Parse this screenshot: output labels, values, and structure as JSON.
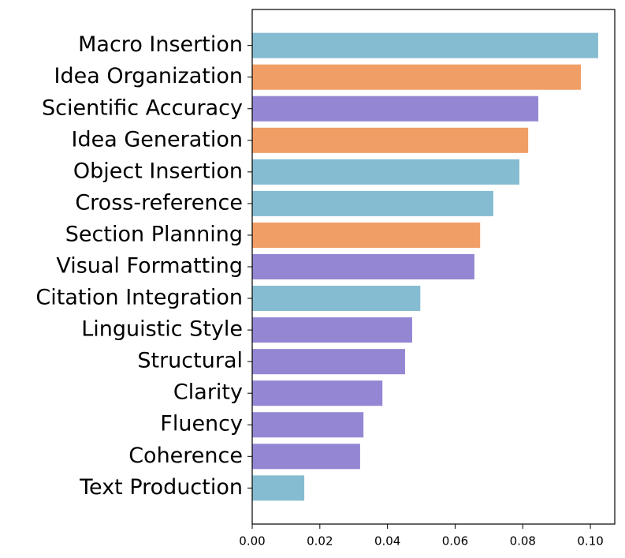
{
  "chart_data": {
    "type": "barh",
    "categories": [
      "Macro Insertion",
      "Idea Organization",
      "Scientific Accuracy",
      "Idea Generation",
      "Object Insertion",
      "Cross-reference",
      "Section Planning",
      "Visual Formatting",
      "Citation Integration",
      "Linguistic Style",
      "Structural",
      "Clarity",
      "Fluency",
      "Coherence",
      "Text Production"
    ],
    "values": [
      0.1023,
      0.0972,
      0.0846,
      0.0816,
      0.079,
      0.0713,
      0.0674,
      0.0657,
      0.0497,
      0.0473,
      0.0452,
      0.0385,
      0.0329,
      0.0319,
      0.0154
    ],
    "colors": [
      "#86bcd1",
      "#f09e66",
      "#9586d3",
      "#f09e66",
      "#86bcd1",
      "#86bcd1",
      "#f09e66",
      "#9586d3",
      "#86bcd1",
      "#9586d3",
      "#9586d3",
      "#9586d3",
      "#9586d3",
      "#9586d3",
      "#86bcd1"
    ],
    "xlim": [
      0,
      0.1072
    ],
    "xticks": [
      {
        "value": 0,
        "label": "0.00"
      },
      {
        "value": 0.02,
        "label": "0.02"
      },
      {
        "value": 0.04,
        "label": "0.04"
      },
      {
        "value": 0.06,
        "label": "0.06"
      },
      {
        "value": 0.08,
        "label": "0.08"
      },
      {
        "value": 0.1,
        "label": "0.10"
      }
    ]
  }
}
